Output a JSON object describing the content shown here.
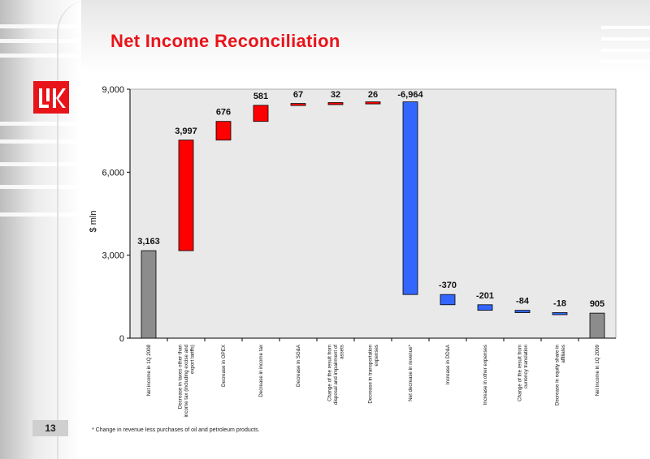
{
  "slide": {
    "title": "Net Income Reconciliation",
    "page_number": "13",
    "footnote": "*  Change in revenue less purchases of oil and petroleum products.",
    "logo_icon": "lukoil-logo-icon"
  },
  "chart_data": {
    "type": "bar",
    "subtype": "waterfall",
    "ylabel": "$ mln",
    "ylim": [
      0,
      9000
    ],
    "yticks": [
      0,
      3000,
      6000,
      9000
    ],
    "ytick_labels": [
      "0",
      "3,000",
      "6,000",
      "9,000"
    ],
    "grid": false,
    "plot_background": "#e9e9e9",
    "categories": [
      [
        "Net income in 1Q 2008"
      ],
      [
        "Decrease in taxes other than",
        "income tax (including excise and",
        "export tariffs)"
      ],
      [
        "Decrease in OPEX"
      ],
      [
        "Decrease in income tax"
      ],
      [
        "Decrease in SG&A"
      ],
      [
        "Change of the result from",
        "disposal and impairment of",
        "assets"
      ],
      [
        "Decrease in transportation",
        "expenses"
      ],
      [
        "Net decrease in revenue*"
      ],
      [
        "Increase in DD&A"
      ],
      [
        "Increase in other expenses"
      ],
      [
        "Change of the result from",
        "currency translation"
      ],
      [
        "Decrease in equity share in",
        "affiliates"
      ],
      [
        "Net income in 1Q 2009"
      ]
    ],
    "values": [
      3163,
      3997,
      676,
      581,
      67,
      32,
      26,
      -6964,
      -370,
      -201,
      -84,
      -18,
      905
    ],
    "value_labels": [
      "3,163",
      "3,997",
      "676",
      "581",
      "67",
      "32",
      "26",
      "-6,964",
      "-370",
      "-201",
      "-84",
      "-18",
      "905"
    ],
    "kinds": [
      "total",
      "delta",
      "delta",
      "delta",
      "delta",
      "delta",
      "delta",
      "delta",
      "delta",
      "delta",
      "delta",
      "delta",
      "total"
    ],
    "colors": {
      "total": "#8c8c8c",
      "increase": "#ff0000",
      "decrease": "#3366ff",
      "outline": "#000000"
    }
  }
}
